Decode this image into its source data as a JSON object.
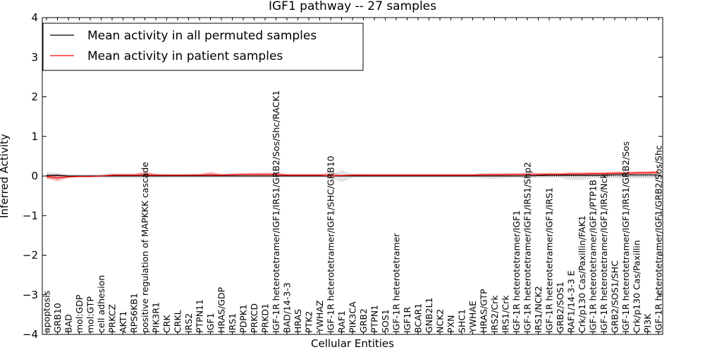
{
  "chart_data": {
    "type": "line",
    "title": "IGF1 pathway -- 27 samples",
    "xlabel": "Cellular Entities",
    "ylabel": "Inferred Activity",
    "ylim": [
      -4,
      4
    ],
    "yticks": [
      -4,
      -3,
      -2,
      -1,
      0,
      1,
      2,
      3,
      4
    ],
    "ytick_labels": [
      "−4",
      "−3",
      "−2",
      "−1",
      "0",
      "1",
      "2",
      "3",
      "4"
    ],
    "legend": {
      "placement": "top-left",
      "entries": [
        {
          "label": "Mean activity in all permuted samples",
          "color": "#000000"
        },
        {
          "label": "Mean activity in patient samples",
          "color": "#ff0000"
        }
      ]
    },
    "categories": [
      "apoptosis",
      "GRB10",
      "BAD",
      "mol:GDP",
      "mol:GTP",
      "cell adhesion",
      "PRKCZ",
      "AKT1",
      "RPS6KB1",
      "positive regulation of MAPKKK cascade",
      "PIK3R1",
      "CRK",
      "CRKL",
      "IRS2",
      "PTPN11",
      "IGF1",
      "HRAS/GDP",
      "IRS1",
      "PDPK1",
      "PRKCD",
      "PRKD1",
      "IGF-1R heterotetramer/IGF1/IRS1/GRB2/Sos/Shc/RACK1",
      "BAD/14-3-3",
      "HRAS",
      "PTK2",
      "YWHAZ",
      "IGF-1R heterotetramer/IGF1/SHC/GRB10",
      "RAF1",
      "PIK3CA",
      "GRB2",
      "PTPN1",
      "SOS1",
      "IGF-1R heterotetramer",
      "IGF1R",
      "BCAR1",
      "GNB2L1",
      "NCK2",
      "PXN",
      "SHC1",
      "YWHAE",
      "HRAS/GTP",
      "IRS2/Crk",
      "IRS1/Crk",
      "IGF-1R heterotetramer/IGF1",
      "IGF-1R heterotetramer/IGF1/IRS1/Shp2",
      "IRS1/NCK2",
      "IGF-1R heterotetramer/IGF1/IRS1",
      "GRB2/SOS1",
      "RAF1/14-3-3 E",
      "Crk/p130 Cas/Paxillin/FAK1",
      "IGF-1R heterotetramer/IGF1/PTP1B",
      "IGF-1R heterotetramer/IGF1/IRS/Nck",
      "GRB2/SOS1/SHC",
      "IGF-1R heterotetramer/IGF1/IRS1/GRB2/Sos",
      "Crk/p130 Cas/Paxillin",
      "PI3K",
      "IGF-1R heterotetramer/IGF1/GRB2/Sos/Shc"
    ],
    "series": [
      {
        "name": "Mean activity in all permuted samples",
        "color": "#000000",
        "values": [
          0.01,
          0.02,
          0.0,
          0.0,
          0.0,
          0.0,
          0.0,
          0.0,
          0.0,
          0.0,
          0.0,
          0.0,
          0.0,
          0.0,
          0.0,
          0.0,
          0.0,
          0.0,
          0.0,
          0.0,
          0.0,
          0.0,
          0.0,
          0.0,
          0.0,
          0.0,
          0.0,
          0.0,
          0.0,
          0.0,
          0.0,
          0.0,
          0.0,
          0.0,
          0.0,
          0.0,
          0.0,
          0.0,
          0.0,
          0.0,
          0.0,
          0.0,
          0.0,
          0.0,
          0.0,
          0.01,
          0.02,
          0.02,
          0.02,
          0.02,
          0.02,
          0.02,
          0.03,
          0.03,
          0.03,
          0.03,
          0.03
        ],
        "band_lo": [
          -0.08,
          -0.06,
          -0.03,
          -0.03,
          -0.03,
          -0.04,
          -0.06,
          -0.06,
          -0.06,
          -0.07,
          -0.06,
          -0.05,
          -0.05,
          -0.05,
          -0.05,
          -0.05,
          -0.05,
          -0.05,
          -0.05,
          -0.05,
          -0.05,
          -0.05,
          -0.04,
          -0.04,
          -0.04,
          -0.04,
          -0.05,
          -0.15,
          -0.05,
          -0.04,
          -0.04,
          -0.04,
          -0.04,
          -0.04,
          -0.04,
          -0.04,
          -0.04,
          -0.04,
          -0.04,
          -0.04,
          -0.07,
          -0.07,
          -0.06,
          -0.05,
          -0.05,
          -0.05,
          -0.05,
          -0.05,
          -0.1,
          -0.1,
          -0.06,
          -0.06,
          -0.06,
          -0.06,
          -0.06,
          -0.06,
          -0.07
        ],
        "band_hi": [
          0.1,
          0.08,
          0.05,
          0.04,
          0.04,
          0.05,
          0.07,
          0.07,
          0.07,
          0.08,
          0.07,
          0.06,
          0.06,
          0.06,
          0.06,
          0.06,
          0.06,
          0.06,
          0.06,
          0.06,
          0.06,
          0.06,
          0.05,
          0.05,
          0.05,
          0.05,
          0.06,
          0.14,
          0.06,
          0.05,
          0.05,
          0.05,
          0.05,
          0.05,
          0.05,
          0.05,
          0.05,
          0.05,
          0.05,
          0.05,
          0.07,
          0.07,
          0.07,
          0.06,
          0.06,
          0.06,
          0.07,
          0.07,
          0.08,
          0.08,
          0.07,
          0.07,
          0.07,
          0.07,
          0.07,
          0.07,
          0.08
        ]
      },
      {
        "name": "Mean activity in patient samples",
        "color": "#ff0000",
        "values": [
          -0.01,
          -0.05,
          -0.02,
          -0.01,
          -0.01,
          0.0,
          0.02,
          0.02,
          0.02,
          0.03,
          0.02,
          0.02,
          0.02,
          0.02,
          0.02,
          0.03,
          0.02,
          0.03,
          0.04,
          0.04,
          0.04,
          0.04,
          0.02,
          0.02,
          0.02,
          0.02,
          0.0,
          0.01,
          0.02,
          0.02,
          0.02,
          0.02,
          0.02,
          0.02,
          0.02,
          0.02,
          0.02,
          0.02,
          0.02,
          0.02,
          0.03,
          0.03,
          0.03,
          0.04,
          0.04,
          0.04,
          0.04,
          0.04,
          0.05,
          0.05,
          0.06,
          0.06,
          0.07,
          0.07,
          0.08,
          0.08,
          0.09
        ],
        "band_lo": [
          -0.06,
          -0.13,
          -0.05,
          -0.03,
          -0.03,
          -0.02,
          -0.01,
          -0.01,
          -0.01,
          0.0,
          -0.01,
          0.0,
          0.0,
          0.0,
          0.0,
          0.0,
          0.0,
          0.0,
          0.01,
          0.01,
          0.01,
          0.01,
          0.0,
          0.0,
          0.0,
          0.0,
          -0.02,
          -0.01,
          0.0,
          0.0,
          0.0,
          0.0,
          0.0,
          0.0,
          0.0,
          0.0,
          0.0,
          0.0,
          0.0,
          0.0,
          0.0,
          0.0,
          0.01,
          0.01,
          0.01,
          0.01,
          0.01,
          0.01,
          0.02,
          0.02,
          0.03,
          0.03,
          0.04,
          0.04,
          0.05,
          0.05,
          0.06
        ],
        "band_hi": [
          0.04,
          0.04,
          0.01,
          0.01,
          0.01,
          0.02,
          0.05,
          0.05,
          0.05,
          0.11,
          0.05,
          0.04,
          0.04,
          0.04,
          0.05,
          0.1,
          0.05,
          0.06,
          0.07,
          0.08,
          0.08,
          0.09,
          0.05,
          0.05,
          0.05,
          0.05,
          0.08,
          0.03,
          0.05,
          0.05,
          0.05,
          0.05,
          0.05,
          0.05,
          0.05,
          0.05,
          0.05,
          0.05,
          0.05,
          0.05,
          0.06,
          0.06,
          0.07,
          0.07,
          0.08,
          0.08,
          0.08,
          0.08,
          0.09,
          0.09,
          0.1,
          0.1,
          0.11,
          0.11,
          0.12,
          0.12,
          0.13
        ]
      }
    ],
    "grid": false
  }
}
